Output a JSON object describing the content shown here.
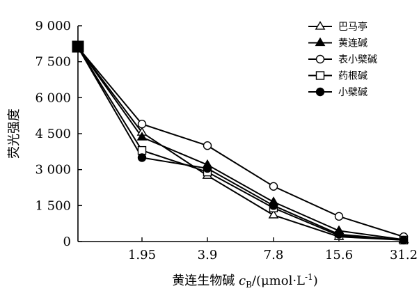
{
  "chart_data": {
    "type": "line",
    "title": "",
    "xlabel": "黄连生物碱 cB/(μmol·L-1)",
    "xlabel_parts": {
      "main": "黄连生物碱 ",
      "var": "c",
      "sub": "B",
      "unit": "/(μmol·L",
      "sup": "-1",
      "close": ")"
    },
    "ylabel": "荧光强度",
    "categories": [
      "",
      "1.95",
      "3.9",
      "7.8",
      "15.6",
      "31.2"
    ],
    "yticks": [
      0,
      1500,
      3000,
      4500,
      6000,
      7500,
      9000
    ],
    "ytick_labels": [
      "0",
      "1 500",
      "3 000",
      "4 500",
      "6 000",
      "7 500",
      "9 000"
    ],
    "ylim": [
      0,
      9000
    ],
    "legend_position": "top-right",
    "series": [
      {
        "name": "巴马亭",
        "marker": "triangle-open",
        "values": [
          8100,
          4550,
          2750,
          1100,
          200,
          60
        ]
      },
      {
        "name": "黄连碱",
        "marker": "triangle-filled",
        "values": [
          8100,
          4350,
          3200,
          1650,
          450,
          80
        ]
      },
      {
        "name": "表小檗碱",
        "marker": "circle-open",
        "values": [
          8100,
          4900,
          4000,
          2300,
          1050,
          200
        ]
      },
      {
        "name": "药根碱",
        "marker": "square-open",
        "values": [
          8100,
          3800,
          2900,
          1400,
          250,
          60
        ]
      },
      {
        "name": "小檗碱",
        "marker": "circle-filled",
        "values": [
          8100,
          3500,
          3050,
          1500,
          300,
          60
        ]
      }
    ]
  }
}
